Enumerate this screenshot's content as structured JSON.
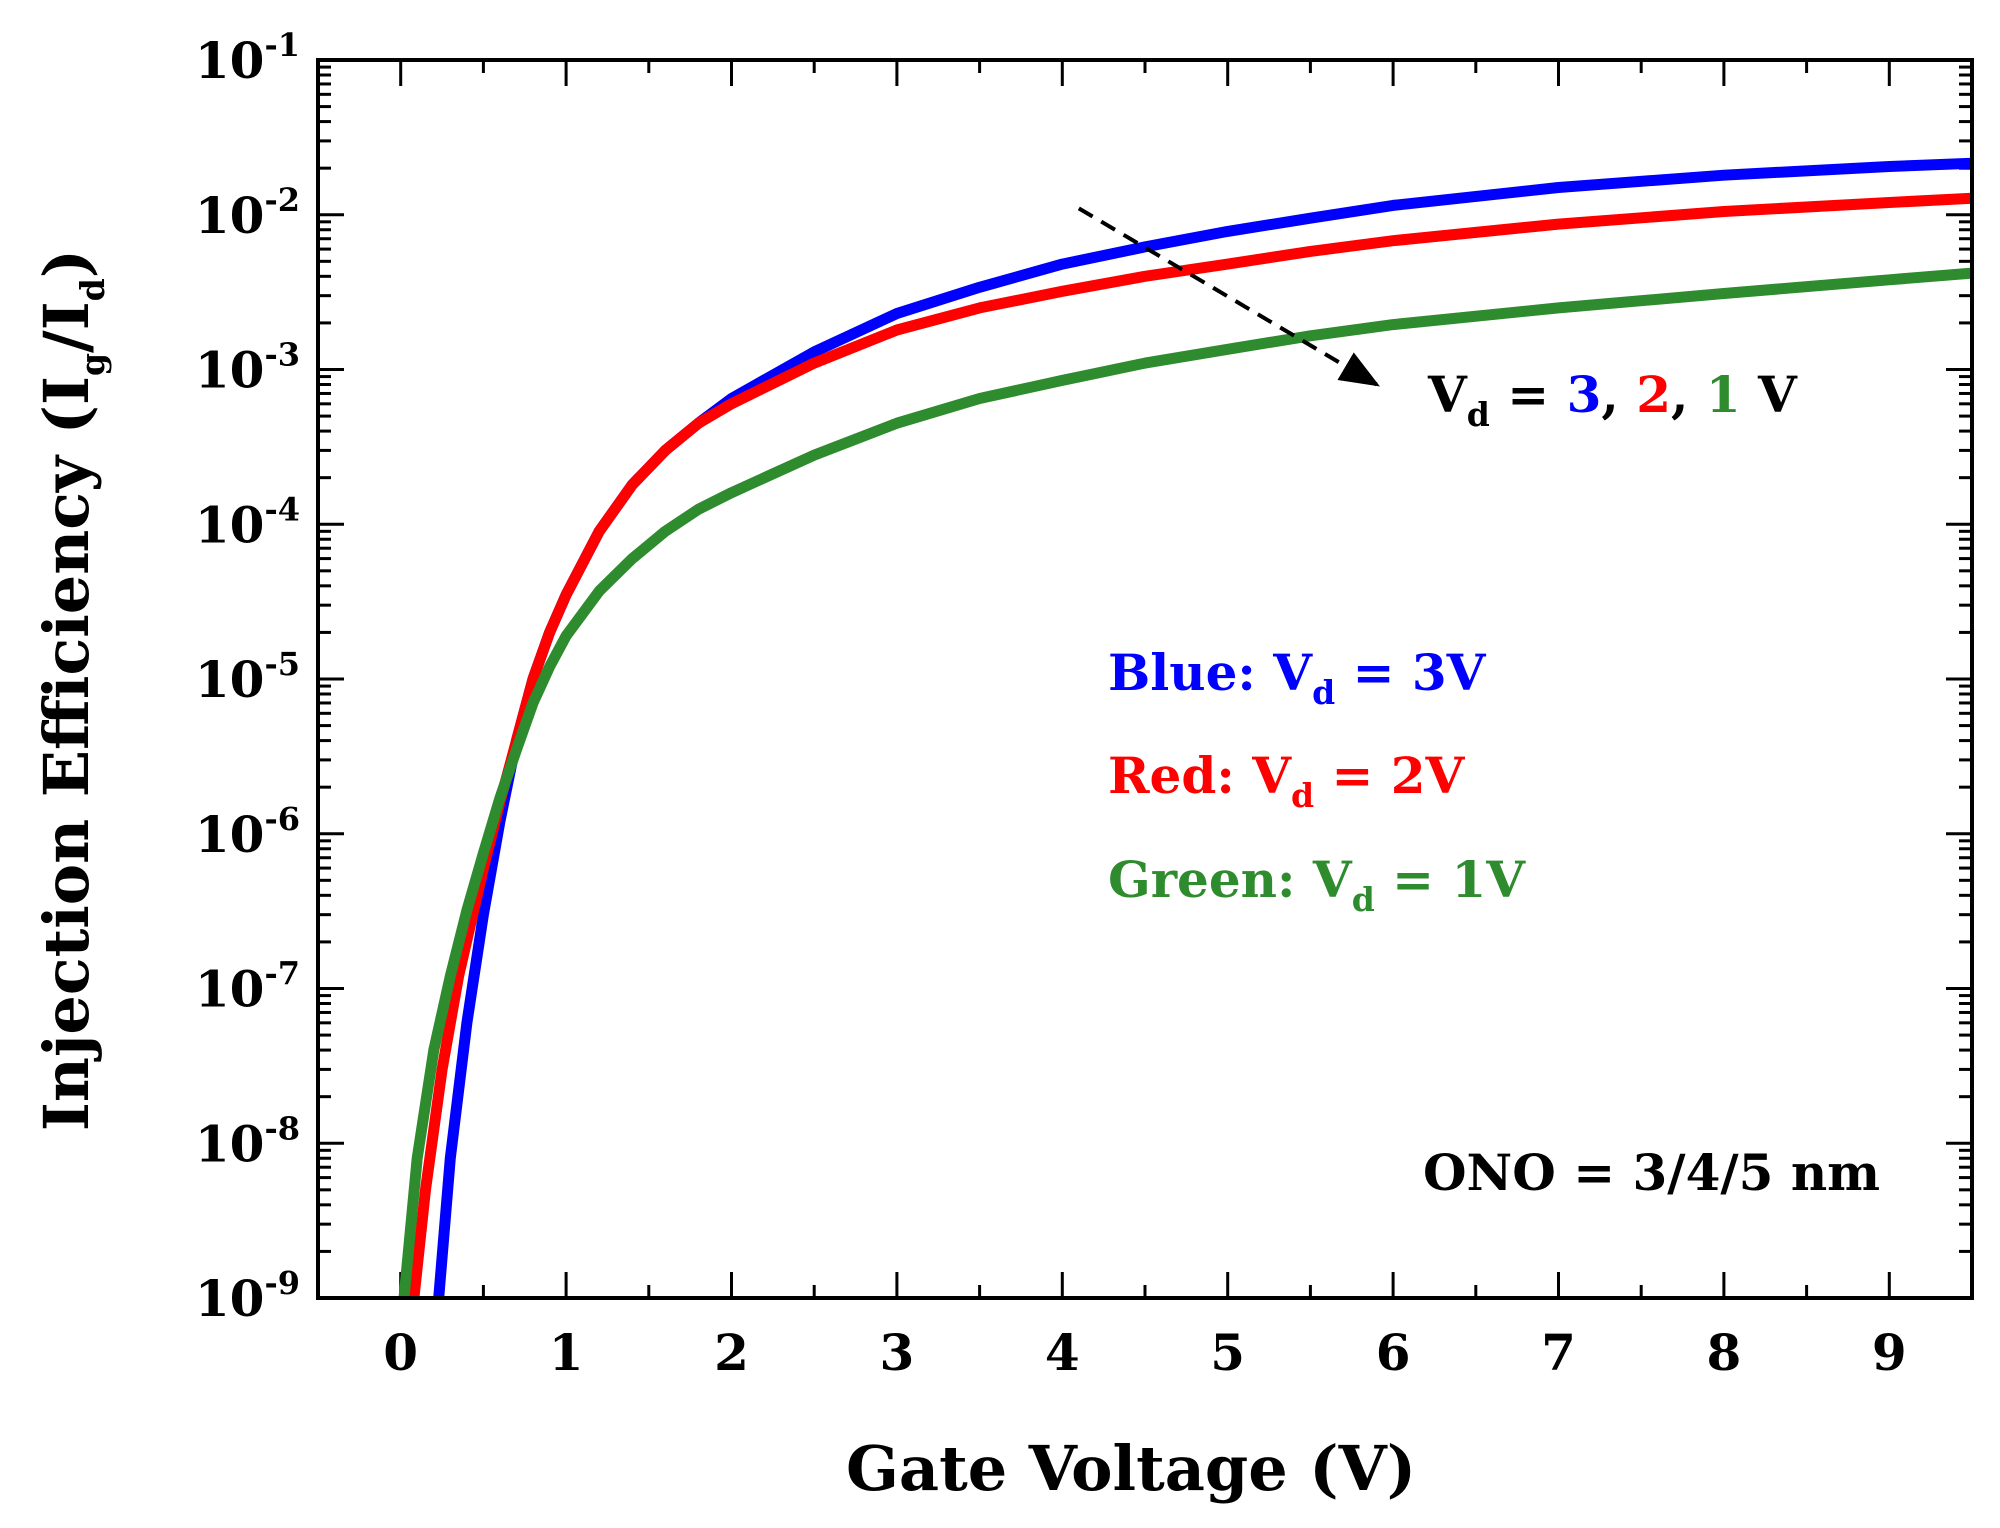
{
  "chart_data": {
    "type": "line",
    "title": "",
    "xlabel": "Gate Voltage (V)",
    "ylabel": {
      "main": "Injection Efficiency (I",
      "sub1": "g",
      "mid": "/I",
      "sub2": "d",
      "end": ")"
    },
    "xlim": [
      -0.5,
      9.5
    ],
    "ylim_log10": [
      -9,
      -1
    ],
    "y_scale": "log",
    "x_ticks": [
      0,
      1,
      2,
      3,
      4,
      5,
      6,
      7,
      8,
      9
    ],
    "x_tick_labels": [
      "0",
      "1",
      "2",
      "3",
      "4",
      "5",
      "6",
      "7",
      "8",
      "9"
    ],
    "y_ticks": [
      {
        "value": 1e-09,
        "base": "10",
        "exp": "-9"
      },
      {
        "value": 1e-08,
        "base": "10",
        "exp": "-8"
      },
      {
        "value": 1e-07,
        "base": "10",
        "exp": "-7"
      },
      {
        "value": 1e-06,
        "base": "10",
        "exp": "-6"
      },
      {
        "value": 1e-05,
        "base": "10",
        "exp": "-5"
      },
      {
        "value": 0.0001,
        "base": "10",
        "exp": "-4"
      },
      {
        "value": 0.001,
        "base": "10",
        "exp": "-3"
      },
      {
        "value": 0.01,
        "base": "10",
        "exp": "-2"
      },
      {
        "value": 0.1,
        "base": "10",
        "exp": "-1"
      }
    ],
    "series": [
      {
        "name": "Vd = 3V",
        "color": "#0000ff",
        "x": [
          0.23,
          0.3,
          0.4,
          0.5,
          0.6,
          0.7,
          0.8,
          0.9,
          1.0,
          1.2,
          1.4,
          1.6,
          1.8,
          2.0,
          2.5,
          3.0,
          3.5,
          4.0,
          4.5,
          5.0,
          5.5,
          6.0,
          7.0,
          8.0,
          9.0,
          9.5
        ],
        "y": [
          1e-09,
          8e-09,
          6e-08,
          3e-07,
          1.2e-06,
          4e-06,
          1e-05,
          2e-05,
          3.5e-05,
          9e-05,
          0.00018,
          0.0003,
          0.00045,
          0.00065,
          0.0013,
          0.0023,
          0.0034,
          0.0048,
          0.0062,
          0.0078,
          0.0095,
          0.0115,
          0.015,
          0.018,
          0.0205,
          0.0215
        ]
      },
      {
        "name": "Vd = 2V",
        "color": "#ff0000",
        "x": [
          0.08,
          0.15,
          0.25,
          0.35,
          0.5,
          0.6,
          0.7,
          0.8,
          0.9,
          1.0,
          1.2,
          1.4,
          1.6,
          1.8,
          2.0,
          2.5,
          3.0,
          3.5,
          4.0,
          4.5,
          5.0,
          5.5,
          6.0,
          7.0,
          8.0,
          9.0,
          9.5
        ],
        "y": [
          1e-09,
          5e-09,
          3e-08,
          1.2e-07,
          6e-07,
          1.6e-06,
          4e-06,
          1e-05,
          2e-05,
          3.5e-05,
          9e-05,
          0.00018,
          0.0003,
          0.00045,
          0.0006,
          0.0011,
          0.0018,
          0.0025,
          0.0032,
          0.004,
          0.0048,
          0.0058,
          0.0068,
          0.0087,
          0.0105,
          0.012,
          0.0128
        ]
      },
      {
        "name": "Vd = 1V",
        "color": "#2e8b2e",
        "x": [
          0.02,
          0.1,
          0.2,
          0.3,
          0.4,
          0.5,
          0.6,
          0.7,
          0.8,
          0.9,
          1.0,
          1.2,
          1.4,
          1.6,
          1.8,
          2.0,
          2.5,
          3.0,
          3.5,
          4.0,
          4.5,
          5.0,
          5.5,
          6.0,
          7.0,
          8.0,
          9.0,
          9.5
        ],
        "y": [
          1e-09,
          8e-09,
          4e-08,
          1.2e-07,
          3.2e-07,
          7.5e-07,
          1.7e-06,
          3.5e-06,
          7e-06,
          1.2e-05,
          1.9e-05,
          3.7e-05,
          6e-05,
          9e-05,
          0.000125,
          0.00016,
          0.00028,
          0.00045,
          0.00065,
          0.00085,
          0.0011,
          0.00135,
          0.00165,
          0.00195,
          0.0025,
          0.0031,
          0.0038,
          0.0042
        ]
      }
    ],
    "arrow": {
      "from": {
        "x": 4.1,
        "y": 0.011
      },
      "to": {
        "x": 5.9,
        "y": 0.0008
      }
    },
    "annotations": {
      "trend": {
        "prefix": "V",
        "sub": "d",
        "eq": " = ",
        "v3": "3",
        "c1": ", ",
        "v2": "2",
        "c2": ", ",
        "v1": "1",
        "unit": " V"
      },
      "legend": [
        {
          "label": "Blue: V",
          "sub": "d",
          "rest": " = 3V",
          "color": "#0000ff"
        },
        {
          "label": "Red: V",
          "sub": "d",
          "rest": " = 2V",
          "color": "#ff0000"
        },
        {
          "label": "Green: V",
          "sub": "d",
          "rest": " = 1V",
          "color": "#2e8b2e"
        }
      ],
      "note": "ONO = 3/4/5 nm"
    }
  }
}
